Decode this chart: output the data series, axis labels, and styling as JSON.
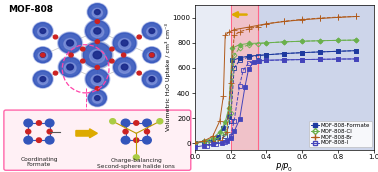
{
  "title_left": "MOF-808",
  "xlabel": "$P$/$P_0$",
  "ylabel": "Volumetric H₂O Uptake / cm³ cm⁻³",
  "xlim": [
    0.0,
    1.0
  ],
  "ylim": [
    -50,
    1100
  ],
  "yticks": [
    0,
    200,
    400,
    600,
    800,
    1000
  ],
  "xticks": [
    0.0,
    0.2,
    0.4,
    0.6,
    0.8,
    1.0
  ],
  "plot_bg": "#cdd5ea",
  "highlight_band": [
    0.2,
    0.35
  ],
  "series": {
    "MOF-808-Formate": {
      "color": "#1e3a9f",
      "marker": "s",
      "filled": true,
      "adsorption": [
        [
          0.0,
          5
        ],
        [
          0.05,
          12
        ],
        [
          0.1,
          25
        ],
        [
          0.13,
          50
        ],
        [
          0.16,
          120
        ],
        [
          0.19,
          220
        ],
        [
          0.21,
          660
        ],
        [
          0.25,
          680
        ],
        [
          0.3,
          695
        ],
        [
          0.4,
          705
        ],
        [
          0.5,
          715
        ],
        [
          0.6,
          722
        ],
        [
          0.7,
          728
        ],
        [
          0.8,
          733
        ],
        [
          0.9,
          738
        ]
      ],
      "desorption": [
        [
          0.9,
          738
        ],
        [
          0.8,
          733
        ],
        [
          0.7,
          728
        ],
        [
          0.6,
          722
        ],
        [
          0.5,
          715
        ],
        [
          0.4,
          705
        ],
        [
          0.35,
          698
        ],
        [
          0.3,
          688
        ],
        [
          0.25,
          660
        ],
        [
          0.22,
          600
        ],
        [
          0.2,
          180
        ],
        [
          0.17,
          60
        ],
        [
          0.12,
          20
        ],
        [
          0.07,
          8
        ]
      ]
    },
    "MOF-808-Cl": {
      "color": "#6ab04c",
      "marker": "D",
      "filled": false,
      "adsorption": [
        [
          0.0,
          5
        ],
        [
          0.05,
          15
        ],
        [
          0.1,
          40
        ],
        [
          0.14,
          90
        ],
        [
          0.17,
          170
        ],
        [
          0.19,
          280
        ],
        [
          0.21,
          760
        ],
        [
          0.25,
          785
        ],
        [
          0.3,
          795
        ],
        [
          0.4,
          800
        ],
        [
          0.5,
          808
        ],
        [
          0.6,
          813
        ],
        [
          0.7,
          817
        ],
        [
          0.8,
          820
        ],
        [
          0.9,
          822
        ]
      ],
      "desorption": [
        [
          0.9,
          822
        ],
        [
          0.8,
          820
        ],
        [
          0.7,
          817
        ],
        [
          0.6,
          813
        ],
        [
          0.5,
          808
        ],
        [
          0.4,
          800
        ],
        [
          0.35,
          793
        ],
        [
          0.3,
          783
        ],
        [
          0.25,
          760
        ],
        [
          0.22,
          700
        ],
        [
          0.2,
          240
        ],
        [
          0.17,
          80
        ],
        [
          0.12,
          28
        ],
        [
          0.07,
          10
        ]
      ]
    },
    "MOF-808-Br": {
      "color": "#b05a1a",
      "marker": "+",
      "filled": false,
      "adsorption": [
        [
          0.0,
          5
        ],
        [
          0.05,
          18
        ],
        [
          0.1,
          55
        ],
        [
          0.14,
          180
        ],
        [
          0.16,
          380
        ],
        [
          0.17,
          860
        ],
        [
          0.19,
          885
        ],
        [
          0.22,
          905
        ],
        [
          0.3,
          925
        ],
        [
          0.4,
          952
        ],
        [
          0.5,
          970
        ],
        [
          0.6,
          984
        ],
        [
          0.7,
          994
        ],
        [
          0.8,
          1003
        ],
        [
          0.9,
          1010
        ]
      ],
      "desorption": [
        [
          0.9,
          1010
        ],
        [
          0.8,
          1005
        ],
        [
          0.7,
          997
        ],
        [
          0.6,
          987
        ],
        [
          0.5,
          972
        ],
        [
          0.4,
          952
        ],
        [
          0.35,
          930
        ],
        [
          0.3,
          910
        ],
        [
          0.25,
          888
        ],
        [
          0.22,
          860
        ],
        [
          0.2,
          480
        ],
        [
          0.18,
          90
        ],
        [
          0.15,
          28
        ],
        [
          0.1,
          10
        ]
      ]
    },
    "MOF-808-I": {
      "color": "#4444bb",
      "marker": "s",
      "filled": false,
      "adsorption": [
        [
          0.0,
          -30
        ],
        [
          0.05,
          -18
        ],
        [
          0.1,
          -8
        ],
        [
          0.15,
          5
        ],
        [
          0.18,
          18
        ],
        [
          0.2,
          45
        ],
        [
          0.22,
          95
        ],
        [
          0.25,
          190
        ],
        [
          0.28,
          450
        ],
        [
          0.3,
          590
        ],
        [
          0.33,
          650
        ],
        [
          0.36,
          658
        ],
        [
          0.4,
          662
        ],
        [
          0.5,
          665
        ],
        [
          0.6,
          667
        ],
        [
          0.7,
          669
        ],
        [
          0.8,
          671
        ],
        [
          0.9,
          672
        ]
      ],
      "desorption": [
        [
          0.9,
          672
        ],
        [
          0.8,
          671
        ],
        [
          0.7,
          669
        ],
        [
          0.6,
          667
        ],
        [
          0.5,
          664
        ],
        [
          0.4,
          660
        ],
        [
          0.35,
          655
        ],
        [
          0.3,
          640
        ],
        [
          0.27,
          580
        ],
        [
          0.25,
          460
        ],
        [
          0.22,
          180
        ],
        [
          0.2,
          55
        ],
        [
          0.17,
          12
        ],
        [
          0.12,
          -5
        ],
        [
          0.07,
          -18
        ]
      ]
    }
  },
  "left_bg": "#f5f5f5",
  "pink_box_color": "#ff66aa",
  "pink_box_face": "#fff0f5",
  "struct_blue_dark": "#1a2a8a",
  "struct_blue_mid": "#3355bb",
  "struct_blue_light": "#8899dd",
  "struct_grey": "#aabbcc"
}
